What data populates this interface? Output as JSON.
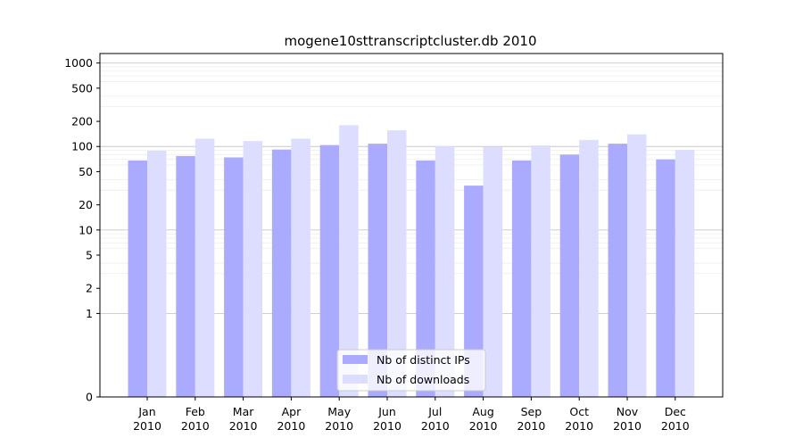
{
  "chart_data": {
    "type": "bar",
    "title": "mogene10sttranscriptcluster.db 2010",
    "xlabel": "",
    "ylabel": "",
    "y_scale": "symlog",
    "ylim": [
      0,
      1300
    ],
    "y_ticks": [
      {
        "value": 0,
        "label": "0"
      },
      {
        "value": 1,
        "label": "1"
      },
      {
        "value": 2,
        "label": "2"
      },
      {
        "value": 5,
        "label": "5"
      },
      {
        "value": 10,
        "label": "10"
      },
      {
        "value": 20,
        "label": "20"
      },
      {
        "value": 50,
        "label": "50"
      },
      {
        "value": 100,
        "label": "100"
      },
      {
        "value": 200,
        "label": "200"
      },
      {
        "value": 500,
        "label": "500"
      },
      {
        "value": 1000,
        "label": "1000"
      }
    ],
    "categories": [
      {
        "month": "Jan",
        "year": "2010"
      },
      {
        "month": "Feb",
        "year": "2010"
      },
      {
        "month": "Mar",
        "year": "2010"
      },
      {
        "month": "Apr",
        "year": "2010"
      },
      {
        "month": "May",
        "year": "2010"
      },
      {
        "month": "Jun",
        "year": "2010"
      },
      {
        "month": "Jul",
        "year": "2010"
      },
      {
        "month": "Aug",
        "year": "2010"
      },
      {
        "month": "Sep",
        "year": "2010"
      },
      {
        "month": "Oct",
        "year": "2010"
      },
      {
        "month": "Nov",
        "year": "2010"
      },
      {
        "month": "Dec",
        "year": "2010"
      }
    ],
    "series": [
      {
        "name": "Nb of distinct IPs",
        "color": "#aaaaff",
        "values": [
          68,
          77,
          74,
          92,
          104,
          108,
          68,
          34,
          68,
          80,
          108,
          70
        ]
      },
      {
        "name": "Nb of downloads",
        "color": "#ddddff",
        "values": [
          89,
          124,
          116,
          124,
          180,
          156,
          101,
          99,
          103,
          120,
          140,
          91
        ]
      }
    ],
    "grid": true,
    "legend_position": "bottom-center"
  }
}
